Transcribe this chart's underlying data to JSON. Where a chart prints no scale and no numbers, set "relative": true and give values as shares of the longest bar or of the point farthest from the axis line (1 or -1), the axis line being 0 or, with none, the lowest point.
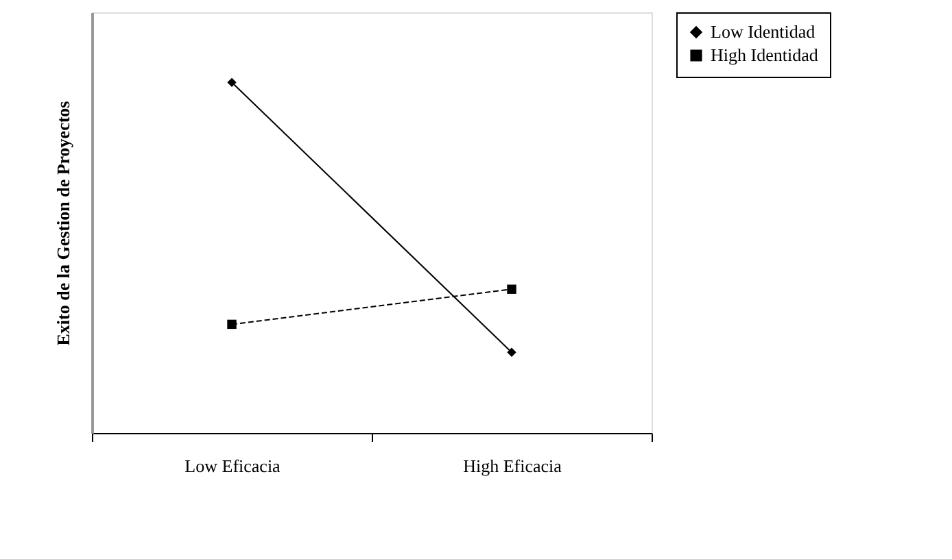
{
  "chart_data": {
    "type": "line",
    "relative": true,
    "ylabel": "Exito de la Gestion de Proyectos",
    "categories": [
      "Low Eficacia",
      "High Eficacia"
    ],
    "legend": "right",
    "grid": false,
    "series": [
      {
        "name": "Low Identidad",
        "color": "#000000",
        "values": [
          1,
          0.23
        ],
        "marker": "diamond",
        "line_style": "solid"
      },
      {
        "name": "High Identidad",
        "color": "#000000",
        "values": [
          0.31,
          0.41
        ],
        "marker": "square",
        "line_style": "dashed"
      }
    ]
  }
}
